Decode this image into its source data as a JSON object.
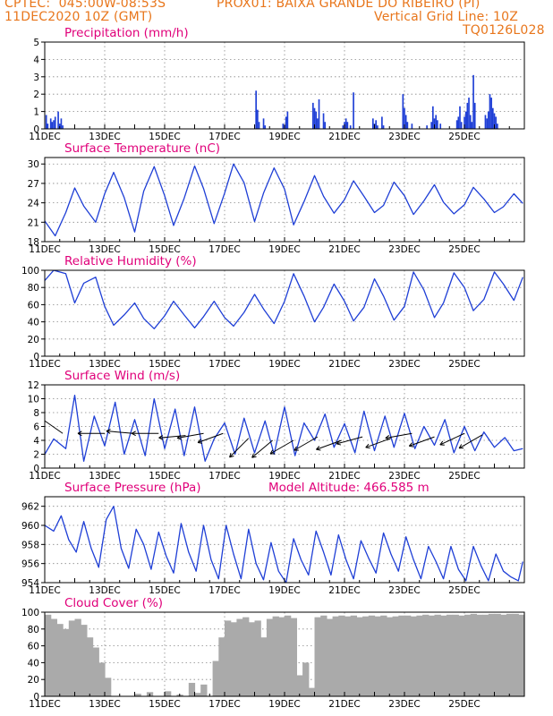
{
  "header": {
    "line1_left": "CPTEC:  045:00W-08:53S",
    "line1_right": "PROX01: BAIXA GRANDE DO RIBEIRO (PI)",
    "line2_left": "11DEC2020 10Z (GMT)",
    "line2_right": "Vertical Grid Line: 10Z",
    "line3_right": "TQ0126L028"
  },
  "colors": {
    "line": "#1f3fd6",
    "header": "#e8761c",
    "title": "#e0007a",
    "cloud": "#aaaaaa",
    "wind_arrow": "#000000"
  },
  "x_tick_labels": [
    "11DEC",
    "13DEC",
    "15DEC",
    "17DEC",
    "19DEC",
    "21DEC",
    "23DEC",
    "25DEC"
  ],
  "chart_data": [
    {
      "type": "bar",
      "title": "Precipitation (mm/h)",
      "ylim": [
        0,
        5
      ],
      "yticks": [
        0,
        1,
        2,
        3,
        4,
        5
      ],
      "x_unit": "days since 11DEC2020 10Z",
      "x": [
        0.05,
        0.1,
        0.2,
        0.25,
        0.3,
        0.35,
        0.45,
        0.5,
        0.55,
        0.6,
        7.05,
        7.1,
        7.15,
        7.3,
        7.35,
        7.95,
        8.0,
        8.05,
        8.1,
        8.95,
        9.0,
        9.05,
        9.1,
        9.15,
        9.3,
        9.35,
        9.95,
        10.0,
        10.05,
        10.1,
        10.2,
        10.3,
        10.95,
        11.0,
        11.05,
        11.1,
        11.25,
        11.3,
        11.95,
        12.0,
        12.05,
        12.1,
        12.25,
        12.75,
        12.9,
        12.95,
        13.0,
        13.05,
        13.1,
        13.2,
        13.75,
        13.8,
        13.85,
        13.9,
        14.0,
        14.05,
        14.1,
        14.15,
        14.2,
        14.25,
        14.3,
        14.35,
        14.7,
        14.75,
        14.8,
        14.85,
        14.9,
        14.95,
        15.0,
        15.05,
        15.1
      ],
      "values": [
        0.8,
        0.3,
        0.6,
        0.4,
        0.5,
        0.7,
        1.0,
        0.3,
        0.6,
        0.2,
        2.2,
        1.1,
        0.4,
        0.6,
        0.2,
        0.3,
        0.2,
        0.7,
        1.0,
        1.5,
        1.2,
        1.0,
        0.6,
        1.7,
        0.9,
        0.4,
        0.2,
        0.4,
        0.6,
        0.4,
        0.2,
        2.1,
        0.6,
        0.3,
        0.5,
        0.2,
        0.7,
        0.2,
        2.0,
        1.2,
        0.8,
        0.4,
        0.3,
        0.2,
        0.4,
        1.3,
        0.6,
        0.8,
        0.5,
        0.3,
        0.5,
        0.7,
        1.3,
        0.4,
        0.7,
        1.0,
        1.5,
        1.8,
        0.8,
        0.4,
        3.1,
        1.5,
        0.8,
        0.6,
        1.0,
        2.0,
        1.8,
        1.2,
        0.9,
        0.7,
        0.3
      ]
    },
    {
      "type": "line",
      "title": "Surface Temperature (nC)",
      "ylim": [
        18,
        31
      ],
      "yticks": [
        18,
        21,
        24,
        27,
        30
      ],
      "x": [
        0.0,
        0.35,
        0.7,
        1.0,
        1.3,
        1.7,
        2.0,
        2.3,
        2.65,
        3.0,
        3.3,
        3.65,
        4.0,
        4.3,
        4.65,
        5.0,
        5.3,
        5.65,
        6.0,
        6.3,
        6.65,
        7.0,
        7.3,
        7.65,
        8.0,
        8.3,
        8.65,
        9.0,
        9.3,
        9.65,
        10.0,
        10.3,
        10.65,
        11.0,
        11.3,
        11.65,
        12.0,
        12.3,
        12.65,
        13.0,
        13.3,
        13.65,
        14.0,
        14.3,
        14.65,
        15.0,
        15.3,
        15.65,
        15.95
      ],
      "values": [
        21.2,
        18.9,
        22.5,
        26.3,
        23.5,
        21.0,
        25.4,
        28.7,
        24.8,
        19.5,
        25.8,
        29.6,
        25.1,
        20.5,
        24.7,
        29.7,
        26.2,
        20.8,
        25.5,
        30.0,
        27.1,
        21.1,
        25.5,
        29.4,
        26.1,
        20.6,
        24.2,
        28.2,
        25.0,
        22.4,
        24.5,
        27.4,
        25.0,
        22.5,
        23.6,
        27.2,
        25.1,
        22.2,
        24.3,
        26.8,
        24.1,
        22.3,
        23.7,
        26.4,
        24.6,
        22.5,
        23.4,
        25.4,
        23.9
      ]
    },
    {
      "type": "line",
      "title": "Relative Humidity (%)",
      "ylim": [
        0,
        100
      ],
      "yticks": [
        0,
        20,
        40,
        60,
        80,
        100
      ],
      "x": [
        0.0,
        0.3,
        0.7,
        1.0,
        1.3,
        1.7,
        2.0,
        2.3,
        2.65,
        3.0,
        3.3,
        3.65,
        4.0,
        4.3,
        4.65,
        5.0,
        5.3,
        5.65,
        6.0,
        6.3,
        6.65,
        7.0,
        7.3,
        7.65,
        8.0,
        8.3,
        8.65,
        9.0,
        9.3,
        9.65,
        10.0,
        10.3,
        10.65,
        11.0,
        11.3,
        11.65,
        12.0,
        12.3,
        12.65,
        13.0,
        13.3,
        13.65,
        14.0,
        14.3,
        14.65,
        15.0,
        15.3,
        15.65,
        15.95
      ],
      "values": [
        88,
        100,
        96,
        62,
        85,
        92,
        58,
        36,
        48,
        62,
        44,
        32,
        47,
        64,
        48,
        33,
        46,
        64,
        45,
        35,
        51,
        72,
        55,
        38,
        64,
        96,
        70,
        40,
        57,
        84,
        64,
        41,
        57,
        90,
        70,
        42,
        58,
        98,
        77,
        45,
        62,
        97,
        80,
        53,
        66,
        98,
        84,
        65,
        92
      ]
    },
    {
      "type": "line",
      "title": "Surface Wind (m/s)",
      "ylim": [
        0,
        12
      ],
      "yticks": [
        0,
        2,
        4,
        6,
        8,
        10,
        12
      ],
      "x": [
        0.0,
        0.3,
        0.7,
        1.0,
        1.3,
        1.65,
        2.0,
        2.35,
        2.65,
        3.0,
        3.35,
        3.65,
        4.0,
        4.35,
        4.65,
        5.0,
        5.35,
        5.65,
        6.0,
        6.35,
        6.65,
        7.0,
        7.35,
        7.65,
        8.0,
        8.35,
        8.65,
        9.0,
        9.35,
        9.65,
        10.0,
        10.35,
        10.65,
        11.0,
        11.35,
        11.65,
        12.0,
        12.35,
        12.65,
        13.0,
        13.35,
        13.65,
        14.0,
        14.35,
        14.65,
        15.0,
        15.35,
        15.65,
        15.95
      ],
      "values": [
        2.0,
        4.2,
        2.8,
        10.5,
        1.0,
        7.5,
        3.2,
        9.5,
        2.0,
        7.0,
        1.8,
        10.0,
        2.8,
        8.5,
        1.8,
        8.8,
        1.0,
        4.2,
        6.5,
        2.0,
        7.2,
        2.2,
        6.8,
        2.0,
        8.8,
        1.8,
        6.5,
        4.0,
        7.8,
        3.0,
        6.4,
        2.2,
        8.2,
        2.5,
        7.5,
        3.0,
        7.9,
        2.8,
        6.0,
        3.3,
        7.0,
        2.2,
        6.0,
        2.5,
        5.2,
        3.0,
        4.4,
        2.5,
        2.8
      ],
      "wind_arrows": [
        {
          "x": 0.6,
          "y": 5.0,
          "angle": 145
        },
        {
          "x": 2.0,
          "y": 5.0,
          "angle": 180
        },
        {
          "x": 2.95,
          "y": 5.0,
          "angle": 175
        },
        {
          "x": 3.8,
          "y": 5.0,
          "angle": 180
        },
        {
          "x": 4.7,
          "y": 4.7,
          "angle": 185
        },
        {
          "x": 5.3,
          "y": 5.0,
          "angle": 190
        },
        {
          "x": 5.95,
          "y": 5.0,
          "angle": 200
        },
        {
          "x": 6.8,
          "y": 4.3,
          "angle": 225
        },
        {
          "x": 7.6,
          "y": 4.0,
          "angle": 220
        },
        {
          "x": 8.3,
          "y": 4.0,
          "angle": 210
        },
        {
          "x": 9.1,
          "y": 4.5,
          "angle": 210
        },
        {
          "x": 9.9,
          "y": 4.0,
          "angle": 200
        },
        {
          "x": 10.6,
          "y": 4.5,
          "angle": 195
        },
        {
          "x": 11.55,
          "y": 4.3,
          "angle": 200
        },
        {
          "x": 12.25,
          "y": 5.0,
          "angle": 190
        },
        {
          "x": 13.0,
          "y": 4.5,
          "angle": 200
        },
        {
          "x": 14.0,
          "y": 5.0,
          "angle": 205
        },
        {
          "x": 14.6,
          "y": 4.8,
          "angle": 210
        }
      ]
    },
    {
      "type": "line",
      "title": "Surface Pressure (hPa)",
      "annotation": "Model Altitude: 466.585  m",
      "ylim": [
        954,
        963
      ],
      "yticks": [
        954,
        956,
        958,
        960,
        962
      ],
      "x": [
        0.0,
        0.3,
        0.55,
        0.8,
        1.05,
        1.3,
        1.55,
        1.8,
        2.05,
        2.3,
        2.55,
        2.8,
        3.05,
        3.3,
        3.55,
        3.8,
        4.05,
        4.3,
        4.55,
        4.8,
        5.05,
        5.3,
        5.55,
        5.8,
        6.05,
        6.3,
        6.55,
        6.8,
        7.05,
        7.3,
        7.55,
        7.8,
        8.05,
        8.3,
        8.55,
        8.8,
        9.05,
        9.3,
        9.55,
        9.8,
        10.05,
        10.3,
        10.55,
        10.8,
        11.05,
        11.3,
        11.55,
        11.8,
        12.05,
        12.3,
        12.55,
        12.8,
        13.05,
        13.3,
        13.55,
        13.8,
        14.05,
        14.3,
        14.55,
        14.8,
        15.05,
        15.3,
        15.55,
        15.8,
        15.95
      ],
      "values": [
        960.0,
        959.4,
        961.0,
        958.5,
        957.2,
        960.4,
        957.6,
        955.6,
        960.6,
        962.0,
        957.6,
        955.5,
        959.6,
        958.0,
        955.4,
        959.3,
        956.8,
        955.0,
        960.2,
        957.2,
        955.2,
        960.0,
        956.4,
        954.4,
        960.0,
        957.0,
        954.4,
        959.6,
        956.0,
        954.3,
        958.2,
        955.2,
        954.0,
        958.6,
        956.4,
        954.8,
        959.4,
        957.2,
        954.8,
        959.0,
        956.4,
        954.4,
        958.4,
        956.6,
        955.0,
        959.2,
        957.0,
        955.2,
        958.8,
        956.4,
        954.4,
        957.8,
        956.2,
        954.4,
        957.8,
        955.4,
        954.2,
        957.8,
        955.8,
        954.2,
        957.0,
        955.2,
        954.6,
        954.2,
        956.2
      ]
    },
    {
      "type": "area",
      "title": "Cloud Cover (%)",
      "ylim": [
        0,
        100
      ],
      "yticks": [
        0,
        20,
        40,
        60,
        80,
        100
      ],
      "x": [
        0.0,
        0.2,
        0.4,
        0.6,
        0.8,
        1.0,
        1.2,
        1.4,
        1.6,
        1.8,
        2.0,
        2.2,
        2.4,
        2.6,
        2.8,
        3.0,
        3.2,
        3.4,
        3.6,
        3.8,
        4.0,
        4.2,
        4.4,
        4.6,
        4.8,
        5.0,
        5.2,
        5.4,
        5.6,
        5.8,
        6.0,
        6.2,
        6.4,
        6.6,
        6.8,
        7.0,
        7.2,
        7.4,
        7.6,
        7.8,
        8.0,
        8.2,
        8.4,
        8.6,
        8.8,
        9.0,
        9.2,
        9.4,
        9.6,
        9.8,
        10.0,
        10.2,
        10.4,
        10.6,
        10.8,
        11.0,
        11.2,
        11.4,
        11.6,
        11.8,
        12.0,
        12.2,
        12.4,
        12.6,
        12.8,
        13.0,
        13.2,
        13.4,
        13.6,
        13.8,
        14.0,
        14.2,
        14.4,
        14.6,
        14.8,
        15.0,
        15.2,
        15.4,
        15.6,
        15.8,
        16.0
      ],
      "values": [
        97,
        92,
        86,
        80,
        90,
        92,
        85,
        70,
        58,
        40,
        22,
        0,
        0,
        0,
        0,
        3,
        0,
        5,
        0,
        0,
        6,
        0,
        2,
        0,
        16,
        4,
        14,
        0,
        42,
        70,
        90,
        88,
        92,
        94,
        88,
        90,
        70,
        92,
        95,
        94,
        96,
        93,
        25,
        40,
        10,
        94,
        96,
        92,
        95,
        96,
        95,
        96,
        94,
        95,
        96,
        95,
        96,
        94,
        95,
        96,
        96,
        95,
        96,
        97,
        96,
        97,
        96,
        97,
        97,
        96,
        97,
        98,
        97,
        97,
        98,
        98,
        97,
        98,
        98,
        97,
        96
      ]
    }
  ]
}
